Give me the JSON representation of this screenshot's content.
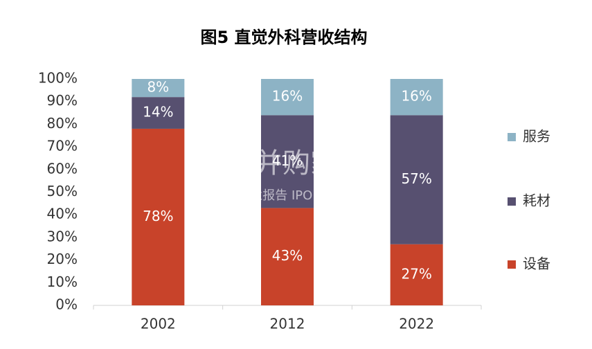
{
  "chart_data": {
    "type": "stacked-bar",
    "title": "图5 直觉外科营收结构",
    "categories": [
      "2002",
      "2012",
      "2022"
    ],
    "series": [
      {
        "name": "设备",
        "color": "#c8432a",
        "values": [
          78,
          43,
          27
        ],
        "value_labels": [
          "78%",
          "43%",
          "27%"
        ]
      },
      {
        "name": "耗材",
        "color": "#575070",
        "values": [
          14,
          41,
          57
        ],
        "value_labels": [
          "14%",
          "41%",
          "57%"
        ]
      },
      {
        "name": "服务",
        "color": "#8db3c5",
        "values": [
          8,
          16,
          16
        ],
        "value_labels": [
          "8%",
          "16%",
          "16%"
        ]
      }
    ],
    "ylim": [
      0,
      100
    ],
    "yticks": [
      {
        "value": 0,
        "label": "0%"
      },
      {
        "value": 10,
        "label": "10%"
      },
      {
        "value": 20,
        "label": "20%"
      },
      {
        "value": 30,
        "label": "30%"
      },
      {
        "value": 40,
        "label": "40%"
      },
      {
        "value": 50,
        "label": "50%"
      },
      {
        "value": 60,
        "label": "60%"
      },
      {
        "value": 70,
        "label": "70%"
      },
      {
        "value": 80,
        "label": "80%"
      },
      {
        "value": 90,
        "label": "90%"
      },
      {
        "value": 100,
        "label": "100%"
      }
    ],
    "legend": "right",
    "watermark": [
      "并购家",
      "行业报告 IPOIPO.CN"
    ]
  }
}
